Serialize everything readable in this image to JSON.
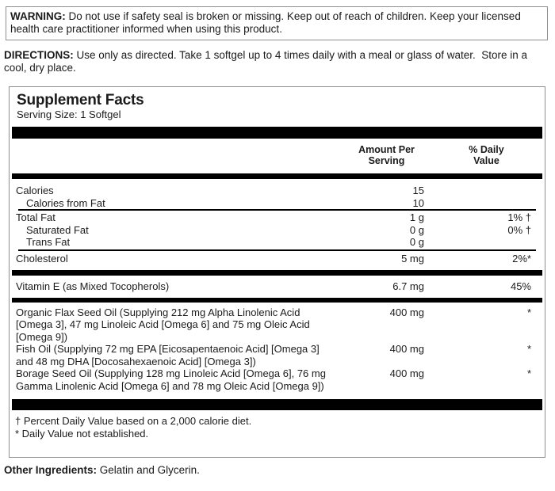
{
  "warning": {
    "label": "WARNING:",
    "text": "Do not use if safety seal is broken or missing. Keep out of reach of children. Keep your licensed health care practitioner informed when using this product."
  },
  "directions": {
    "label": "DIRECTIONS:",
    "text": "Use only as directed. Take 1 softgel up to 4 times daily with a meal or glass of water.  Store in a cool, dry place."
  },
  "supplement_facts": {
    "title": "Supplement Facts",
    "serving_size": "Serving Size: 1 Softgel",
    "columns": {
      "amount": "Amount Per Serving",
      "dv": "% Daily Value"
    },
    "rows": [
      {
        "name": "Calories",
        "amount": "15",
        "dv": ""
      },
      {
        "name": "Calories from Fat",
        "amount": "10",
        "dv": ""
      },
      {
        "name": "Total Fat",
        "amount": "1 g",
        "dv": "1% †"
      },
      {
        "name": "Saturated Fat",
        "amount": "0 g",
        "dv": "0% †"
      },
      {
        "name": "Trans Fat",
        "amount": "0 g",
        "dv": ""
      },
      {
        "name": "Cholesterol",
        "amount": "5 mg",
        "dv": "2%*"
      },
      {
        "name": "Vitamin E (as Mixed Tocopherols)",
        "amount": "6.7 mg",
        "dv": "45%"
      },
      {
        "name": "Organic Flax Seed Oil (Supplying 212 mg Alpha Linolenic Acid [Omega 3], 47 mg Linoleic Acid [Omega 6] and 75 mg Oleic Acid [Omega 9])",
        "amount": "400 mg",
        "dv": "*"
      },
      {
        "name": "Fish Oil (Supplying 72 mg EPA [Eicosapentaenoic Acid] [Omega 3] and 48 mg DHA [Docosahexaenoic Acid] [Omega 3])",
        "amount": "400 mg",
        "dv": "*"
      },
      {
        "name": "Borage Seed Oil (Supplying 128 mg Linoleic Acid [Omega 6], 76 mg Gamma Linolenic Acid [Omega 6] and 78 mg Oleic Acid [Omega 9])",
        "amount": "400 mg",
        "dv": "*"
      }
    ],
    "footnotes": [
      "† Percent Daily Value based on a 2,000 calorie diet.",
      "* Daily Value not established."
    ]
  },
  "other_ingredients": {
    "label": "Other Ingredients:",
    "text": "Gelatin and Glycerin."
  },
  "colors": {
    "rule_bars": "#000000",
    "box_border": "#8f8f8f",
    "text": "#1b1b1b",
    "background": "#ffffff"
  }
}
